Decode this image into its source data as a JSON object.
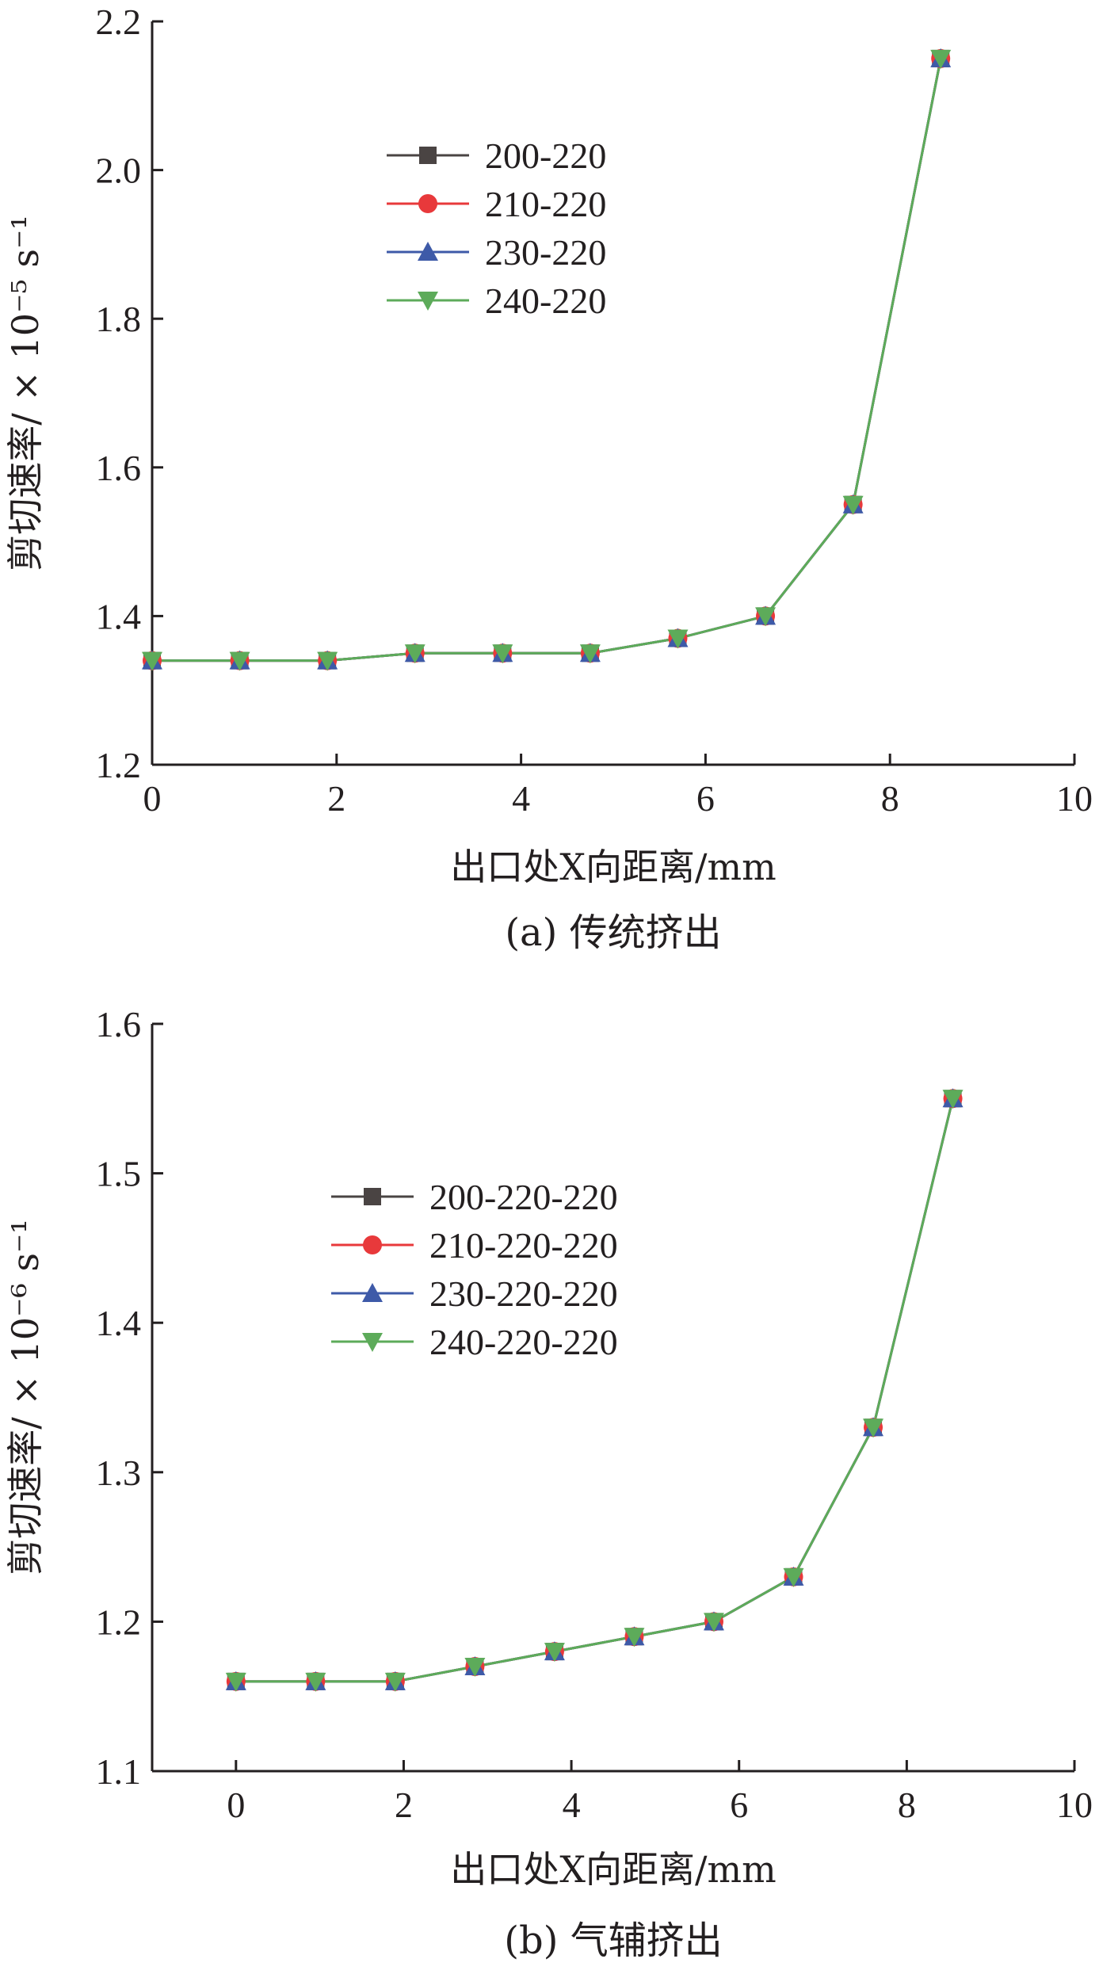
{
  "colors": {
    "s200": "#4a4443",
    "s210": "#e8393b",
    "s230": "#3e5aa8",
    "s240": "#5dab5a",
    "axis": "#231f20"
  },
  "chart_data": [
    {
      "type": "line",
      "caption": "(a) 传统挤出",
      "xlabel": "出口处X向距离/mm",
      "ylabel": "剪切速率/ × 10⁻⁵ s⁻¹",
      "xlim": [
        0,
        10
      ],
      "ylim": [
        1.2,
        2.2
      ],
      "xticks": [
        "0",
        "2",
        "4",
        "6",
        "8",
        "10"
      ],
      "yticks": [
        "1.2",
        "1.4",
        "1.6",
        "1.8",
        "2.0",
        "2.2"
      ],
      "legend_position": "top-left",
      "x": [
        0,
        0.95,
        1.9,
        2.85,
        3.8,
        4.75,
        5.7,
        6.65,
        7.6,
        8.55
      ],
      "series": [
        {
          "name": "200-220",
          "marker": "square",
          "values": [
            1.34,
            1.34,
            1.34,
            1.35,
            1.35,
            1.35,
            1.37,
            1.4,
            1.55,
            2.15
          ]
        },
        {
          "name": "210-220",
          "marker": "circle",
          "values": [
            1.34,
            1.34,
            1.34,
            1.35,
            1.35,
            1.35,
            1.37,
            1.4,
            1.55,
            2.15
          ]
        },
        {
          "name": "230-220",
          "marker": "triangle-up",
          "values": [
            1.34,
            1.34,
            1.34,
            1.35,
            1.35,
            1.35,
            1.37,
            1.4,
            1.55,
            2.15
          ]
        },
        {
          "name": "240-220",
          "marker": "triangle-down",
          "values": [
            1.34,
            1.34,
            1.34,
            1.35,
            1.35,
            1.35,
            1.37,
            1.4,
            1.55,
            2.15
          ]
        }
      ]
    },
    {
      "type": "line",
      "caption": "(b) 气辅挤出",
      "xlabel": "出口处X向距离/mm",
      "ylabel": "剪切速率/ × 10⁻⁶ s⁻¹",
      "xlim": [
        -1,
        10
      ],
      "ylim": [
        1.1,
        1.6
      ],
      "xticks": [
        "0",
        "2",
        "4",
        "6",
        "8",
        "10"
      ],
      "yticks": [
        "1.1",
        "1.2",
        "1.3",
        "1.4",
        "1.5",
        "1.6"
      ],
      "legend_position": "top-left",
      "x": [
        0,
        0.95,
        1.9,
        2.85,
        3.8,
        4.75,
        5.7,
        6.65,
        7.6,
        8.55
      ],
      "series": [
        {
          "name": "200-220-220",
          "marker": "square",
          "values": [
            1.16,
            1.16,
            1.16,
            1.17,
            1.18,
            1.19,
            1.2,
            1.23,
            1.33,
            1.55
          ]
        },
        {
          "name": "210-220-220",
          "marker": "circle",
          "values": [
            1.16,
            1.16,
            1.16,
            1.17,
            1.18,
            1.19,
            1.2,
            1.23,
            1.33,
            1.55
          ]
        },
        {
          "name": "230-220-220",
          "marker": "triangle-up",
          "values": [
            1.16,
            1.16,
            1.16,
            1.17,
            1.18,
            1.19,
            1.2,
            1.23,
            1.33,
            1.55
          ]
        },
        {
          "name": "240-220-220",
          "marker": "triangle-down",
          "values": [
            1.16,
            1.16,
            1.16,
            1.17,
            1.18,
            1.19,
            1.2,
            1.23,
            1.33,
            1.55
          ]
        }
      ]
    }
  ]
}
